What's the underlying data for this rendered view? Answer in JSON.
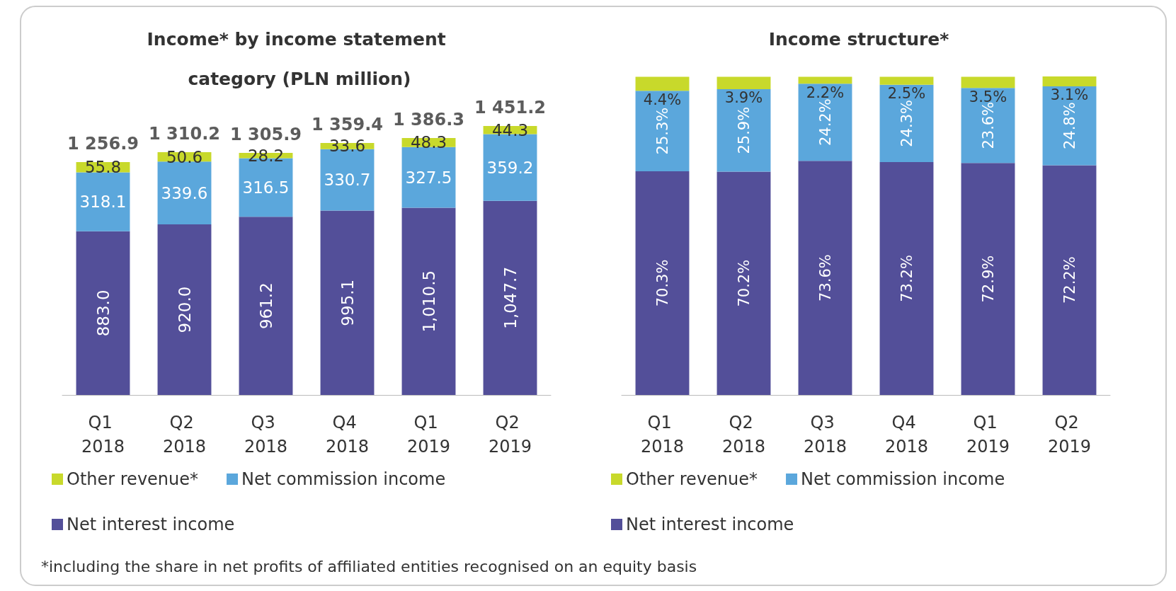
{
  "chart_data": [
    {
      "type": "bar",
      "title": "Income* by income statement category (PLN million)",
      "categories": [
        "Q1 2018",
        "Q2 2018",
        "Q3 2018",
        "Q4 2018",
        "Q1 2019",
        "Q2 2019"
      ],
      "stacked": true,
      "legend": "bottom",
      "series": [
        {
          "name": "Net interest income",
          "color": "#534f99",
          "values": [
            883.0,
            920.0,
            961.2,
            995.1,
            1010.5,
            1047.7
          ],
          "value_labels": [
            "883.0",
            "920.0",
            "961.2",
            "995.1",
            "1,010.5",
            "1,047.7"
          ]
        },
        {
          "name": "Net commission income",
          "color": "#5ba7dc",
          "values": [
            318.1,
            339.6,
            316.5,
            330.7,
            327.5,
            359.2
          ],
          "value_labels": [
            "318.1",
            "339.6",
            "316.5",
            "330.7",
            "327.5",
            "359.2"
          ]
        },
        {
          "name": "Other revenue*",
          "color": "#c8d92b",
          "values": [
            55.8,
            50.6,
            28.2,
            33.6,
            48.3,
            44.3
          ],
          "value_labels": [
            "55.8",
            "50.6",
            "28.2",
            "33.6",
            "48.3",
            "44.3"
          ]
        }
      ],
      "totals": [
        "1 256.9",
        "1 310.2",
        "1 305.9",
        "1 359.4",
        "1 386.3",
        "1 451.2"
      ],
      "annotations": [
        "*including the share in net profits of affiliated entities recognised on an equity basis"
      ]
    },
    {
      "type": "bar",
      "title": "Income structure*",
      "categories": [
        "Q1 2018",
        "Q2 2018",
        "Q3 2018",
        "Q4 2018",
        "Q1 2019",
        "Q2 2019"
      ],
      "stacked": true,
      "legend": "bottom",
      "series": [
        {
          "name": "Net interest income",
          "color": "#534f99",
          "values": [
            70.3,
            70.2,
            73.6,
            73.2,
            72.9,
            72.2
          ],
          "value_labels": [
            "70.3%",
            "70.2%",
            "73.6%",
            "73.2%",
            "72.9%",
            "72.2%"
          ]
        },
        {
          "name": "Net commission income",
          "color": "#5ba7dc",
          "values": [
            25.3,
            25.9,
            24.2,
            24.3,
            23.6,
            24.8
          ],
          "value_labels": [
            "25.3%",
            "25.9%",
            "24.2%",
            "24.3%",
            "23.6%",
            "24.8%"
          ]
        },
        {
          "name": "Other revenue*",
          "color": "#c8d92b",
          "values": [
            4.4,
            3.9,
            2.2,
            2.5,
            3.5,
            3.1
          ],
          "value_labels": [
            "4.4%",
            "3.9%",
            "2.2%",
            "2.5%",
            "3.5%",
            "3.1%"
          ]
        }
      ]
    }
  ]
}
